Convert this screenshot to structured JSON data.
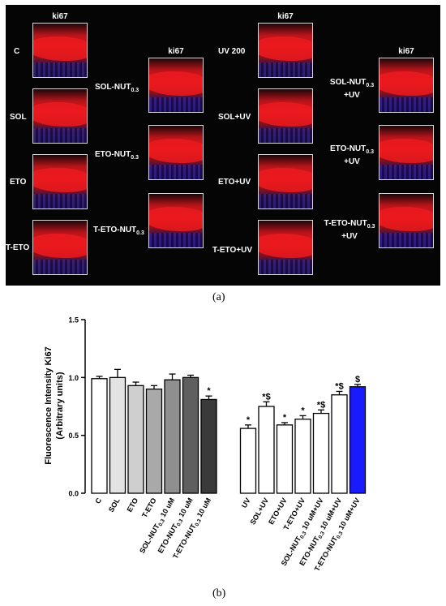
{
  "panel_a": {
    "headers": [
      "ki67",
      "ki67",
      "ki67",
      "ki67"
    ],
    "labels": {
      "c": "C",
      "sol": "SOL",
      "eto": "ETO",
      "teto": "T-ETO",
      "sol_nut": "SOL-NUT",
      "eto_nut": "ETO-NUT",
      "teto_nut": "T-ETO-NUT",
      "uv200": "UV 200",
      "sol_uv": "SOL+UV",
      "eto_uv": "ETO+UV",
      "teto_uv": "T-ETO+UV",
      "sol_nut_uv": "SOL-NUT",
      "eto_nut_uv": "ETO-NUT",
      "teto_nut_uv": "T-ETO-NUT",
      "plus_uv": "+UV",
      "sub": "0.3"
    }
  },
  "captions": {
    "a": "(a)",
    "b": "(b)"
  },
  "chart_data": {
    "type": "bar",
    "ylabel_line1": "Fluorescence Intensity Ki67",
    "ylabel_line2": "(Arbitrary units)",
    "ylim": [
      0,
      1.5
    ],
    "yticks": [
      "0.0",
      "0.5",
      "1.0",
      "1.5"
    ],
    "grid": false,
    "bars": [
      {
        "label": "C",
        "sub": "",
        "suffix": "",
        "value": 0.99,
        "error": 0.02,
        "color": "#ffffff",
        "sig": ""
      },
      {
        "label": "SOL",
        "sub": "",
        "suffix": "",
        "value": 1.0,
        "error": 0.07,
        "color": "#e3e3e3",
        "sig": ""
      },
      {
        "label": "ETO",
        "sub": "",
        "suffix": "",
        "value": 0.93,
        "error": 0.03,
        "color": "#cfcfcf",
        "sig": ""
      },
      {
        "label": "T-ETO",
        "sub": "",
        "suffix": "",
        "value": 0.9,
        "error": 0.03,
        "color": "#a9a9a9",
        "sig": ""
      },
      {
        "label": "SOL-NUT",
        "sub": "0.3",
        "suffix": " 10 uM",
        "value": 0.98,
        "error": 0.05,
        "color": "#8f8f8f",
        "sig": ""
      },
      {
        "label": "ETO-NUT",
        "sub": "0.3",
        "suffix": " 10 uM",
        "value": 1.0,
        "error": 0.02,
        "color": "#5f5f5f",
        "sig": ""
      },
      {
        "label": "T-ETO-NUT",
        "sub": "0.3",
        "suffix": " 10 uM",
        "value": 0.81,
        "error": 0.03,
        "color": "#3a3a3a",
        "sig": "*"
      },
      {
        "label": "UV",
        "sub": "",
        "suffix": "",
        "value": 0.56,
        "error": 0.03,
        "color": "#ffffff",
        "sig": "*"
      },
      {
        "label": "SOL+UV",
        "sub": "",
        "suffix": "",
        "value": 0.75,
        "error": 0.04,
        "color": "#ffffff",
        "sig": "*$"
      },
      {
        "label": "ETO+UV",
        "sub": "",
        "suffix": "",
        "value": 0.59,
        "error": 0.02,
        "color": "#ffffff",
        "sig": "*"
      },
      {
        "label": "T-ETO+UV",
        "sub": "",
        "suffix": "",
        "value": 0.64,
        "error": 0.03,
        "color": "#ffffff",
        "sig": "*"
      },
      {
        "label": "SOL-NUT",
        "sub": "0.3",
        "suffix": " 10 uM+UV",
        "value": 0.69,
        "error": 0.03,
        "color": "#ffffff",
        "sig": "*$"
      },
      {
        "label": "ETO-NUT",
        "sub": "0.3",
        "suffix": " 10 uM+UV",
        "value": 0.85,
        "error": 0.03,
        "color": "#ffffff",
        "sig": "*$"
      },
      {
        "label": "T-ETO-NUT",
        "sub": "0.3",
        "suffix": " 10 uM+UV",
        "value": 0.92,
        "error": 0.02,
        "color": "#1a1aff",
        "sig": "$"
      }
    ]
  }
}
